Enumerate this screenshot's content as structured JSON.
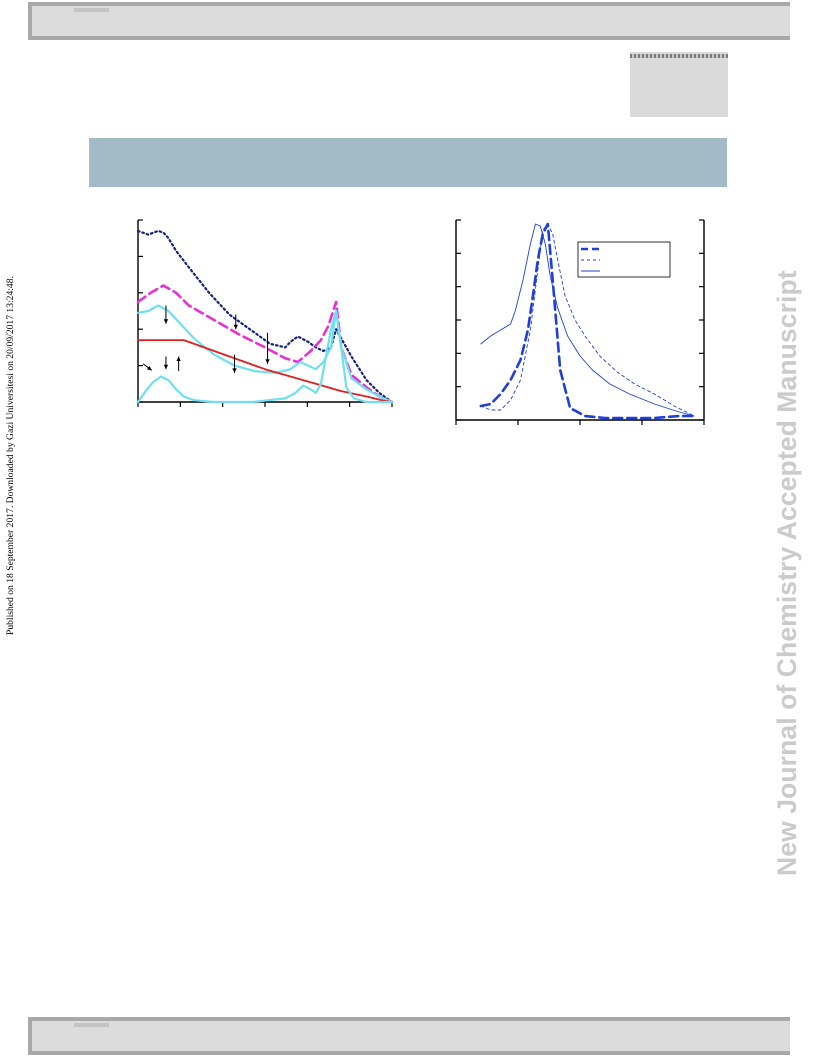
{
  "header": {
    "band_color": "#dcdcdc",
    "border_color": "#a9a9a9"
  },
  "footer": {
    "band_color": "#dcdcdc",
    "border_color": "#a9a9a9"
  },
  "title_band": {
    "color": "#a2bbc6"
  },
  "watermark": {
    "text": "New Journal of Chemistry Accepted Manuscript",
    "color": "#cbcbcb"
  },
  "published_note": {
    "text": "Published on 18 September 2017. Downloaded by Gazi Universitesi on 20/09/2017 13:24:48."
  },
  "chart_data": [
    {
      "type": "line",
      "xlim": [
        0,
        1
      ],
      "ylim": [
        0,
        1
      ],
      "xticks": 6,
      "yticks": 5,
      "series": [
        {
          "color": "#1a237e",
          "style": "dotted",
          "x": [
            0,
            0.04,
            0.08,
            0.1,
            0.12,
            0.15,
            0.2,
            0.28,
            0.36,
            0.44,
            0.52,
            0.58,
            0.6,
            0.63,
            0.67,
            0.7,
            0.73,
            0.76,
            0.78,
            0.8,
            0.84,
            0.9,
            0.95,
            1
          ],
          "y": [
            0.94,
            0.92,
            0.94,
            0.93,
            0.9,
            0.83,
            0.74,
            0.6,
            0.48,
            0.4,
            0.32,
            0.3,
            0.33,
            0.36,
            0.33,
            0.3,
            0.28,
            0.3,
            0.4,
            0.35,
            0.25,
            0.12,
            0.05,
            0
          ]
        },
        {
          "color": "#e830d6",
          "style": "dashed",
          "x": [
            0,
            0.05,
            0.1,
            0.15,
            0.2,
            0.3,
            0.4,
            0.5,
            0.58,
            0.63,
            0.68,
            0.72,
            0.75,
            0.78,
            0.8,
            0.84,
            0.9,
            0.95,
            1
          ],
          "y": [
            0.55,
            0.6,
            0.64,
            0.6,
            0.53,
            0.45,
            0.37,
            0.3,
            0.24,
            0.22,
            0.28,
            0.34,
            0.42,
            0.55,
            0.3,
            0.15,
            0.08,
            0.03,
            0
          ]
        },
        {
          "color": "#6fe0f0",
          "style": "solid",
          "x": [
            0,
            0.04,
            0.08,
            0.12,
            0.16,
            0.22,
            0.3,
            0.38,
            0.46,
            0.54,
            0.6,
            0.64,
            0.67,
            0.7,
            0.73,
            0.76,
            0.78,
            0.8,
            0.84,
            0.9,
            0.95,
            1
          ],
          "y": [
            0.49,
            0.5,
            0.53,
            0.5,
            0.44,
            0.35,
            0.26,
            0.2,
            0.17,
            0.16,
            0.18,
            0.22,
            0.2,
            0.18,
            0.22,
            0.3,
            0.5,
            0.3,
            0.13,
            0.07,
            0.03,
            0
          ]
        },
        {
          "color": "#e02020",
          "style": "solid",
          "x": [
            0,
            0.1,
            0.18,
            0.3,
            0.4,
            0.5,
            0.6,
            0.7,
            0.8,
            0.9,
            0.96,
            1
          ],
          "y": [
            0.34,
            0.34,
            0.34,
            0.28,
            0.23,
            0.18,
            0.14,
            0.1,
            0.06,
            0.03,
            0.01,
            0
          ]
        },
        {
          "color": "#6fe0f0",
          "style": "solid",
          "x": [
            0,
            0.03,
            0.06,
            0.09,
            0.12,
            0.15,
            0.18,
            0.22,
            0.3,
            0.45,
            0.58,
            0.62,
            0.65,
            0.68,
            0.7,
            0.72,
            0.74,
            0.76,
            0.78,
            0.8,
            0.82,
            0.85,
            0.9,
            1
          ],
          "y": [
            0,
            0.06,
            0.11,
            0.14,
            0.12,
            0.07,
            0.03,
            0.01,
            0,
            0,
            0.02,
            0.05,
            0.09,
            0.07,
            0.05,
            0.1,
            0.25,
            0.4,
            0.5,
            0.3,
            0.08,
            0.02,
            0,
            0
          ]
        }
      ],
      "arrows": [
        {
          "x": 0.385,
          "y": 0.48,
          "len": 0.08,
          "dir": "down"
        },
        {
          "x": 0.51,
          "y": 0.38,
          "len": 0.17,
          "dir": "down"
        },
        {
          "x": 0.38,
          "y": 0.26,
          "len": 0.1,
          "dir": "down"
        },
        {
          "x": 0.11,
          "y": 0.53,
          "len": 0.1,
          "dir": "down"
        },
        {
          "x": 0.11,
          "y": 0.25,
          "len": 0.07,
          "dir": "down"
        },
        {
          "x": 0.16,
          "y": 0.17,
          "len": 0.08,
          "dir": "up"
        },
        {
          "x": 0.02,
          "y": 0.21,
          "len": 0.06,
          "dir": "down-right"
        }
      ]
    },
    {
      "type": "line",
      "xlim": [
        0,
        1
      ],
      "ylim": [
        0,
        1
      ],
      "xticks": 4,
      "yticks": 6,
      "legend": "top-right",
      "series": [
        {
          "color": "#1f3fd8",
          "style": "dashed",
          "x": [
            0.1,
            0.14,
            0.18,
            0.22,
            0.26,
            0.29,
            0.31,
            0.33,
            0.35,
            0.37,
            0.39,
            0.42,
            0.46,
            0.52,
            0.6,
            0.7,
            0.8,
            0.9,
            0.96
          ],
          "y": [
            0.07,
            0.08,
            0.13,
            0.2,
            0.3,
            0.45,
            0.62,
            0.8,
            0.93,
            0.98,
            0.7,
            0.25,
            0.06,
            0.02,
            0.01,
            0.01,
            0.01,
            0.02,
            0.02
          ]
        },
        {
          "color": "#1f3fd8",
          "style": "finedash",
          "x": [
            0.1,
            0.14,
            0.18,
            0.22,
            0.26,
            0.3,
            0.33,
            0.35,
            0.37,
            0.39,
            0.41,
            0.44,
            0.48,
            0.52,
            0.58,
            0.65,
            0.72,
            0.8,
            0.88,
            0.96
          ],
          "y": [
            0.07,
            0.05,
            0.05,
            0.1,
            0.2,
            0.45,
            0.75,
            0.95,
            0.98,
            0.93,
            0.8,
            0.62,
            0.5,
            0.42,
            0.32,
            0.24,
            0.18,
            0.13,
            0.07,
            0.02
          ]
        },
        {
          "color": "#1f3fd8",
          "style": "solid",
          "x": [
            0.1,
            0.14,
            0.18,
            0.22,
            0.24,
            0.27,
            0.3,
            0.32,
            0.34,
            0.36,
            0.38,
            0.41,
            0.45,
            0.5,
            0.55,
            0.62,
            0.7,
            0.8,
            0.9,
            0.96
          ],
          "y": [
            0.38,
            0.42,
            0.45,
            0.48,
            0.55,
            0.7,
            0.88,
            0.98,
            0.97,
            0.88,
            0.72,
            0.56,
            0.42,
            0.32,
            0.25,
            0.18,
            0.13,
            0.08,
            0.04,
            0.02
          ]
        }
      ]
    }
  ]
}
